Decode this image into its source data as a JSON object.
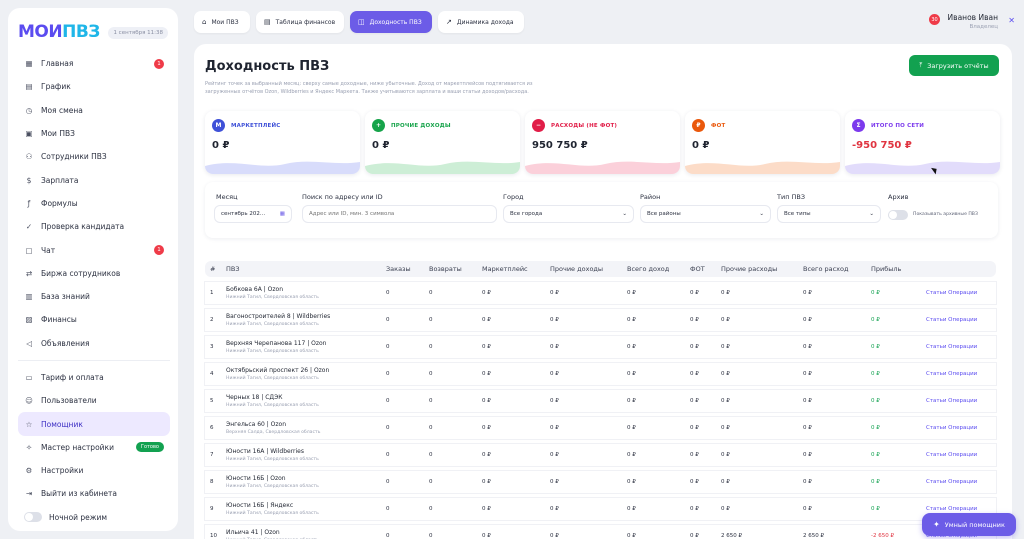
{
  "app": {
    "logo_part1": "МОИ",
    "logo_part2": "ПВЗ",
    "date": "1 сентября 11:38"
  },
  "sidebar": {
    "items": [
      {
        "label": "Главная",
        "icon": "grid-icon",
        "badge": "1"
      },
      {
        "label": "График",
        "icon": "chart-icon"
      },
      {
        "label": "Моя смена",
        "icon": "shift-icon"
      },
      {
        "label": "Мои ПВЗ",
        "icon": "store-icon"
      },
      {
        "label": "Сотрудники ПВЗ",
        "icon": "users-icon"
      },
      {
        "label": "Зарплата",
        "icon": "dollar-icon"
      },
      {
        "label": "Формулы",
        "icon": "formula-icon"
      },
      {
        "label": "Проверка кандидата",
        "icon": "check-icon"
      },
      {
        "label": "Чат",
        "icon": "chat-icon",
        "badge": "1"
      },
      {
        "label": "Биржа сотрудников",
        "icon": "exchange-icon"
      },
      {
        "label": "База знаний",
        "icon": "book-icon"
      },
      {
        "label": "Финансы",
        "icon": "finance-icon"
      },
      {
        "label": "Объявления",
        "icon": "megaphone-icon"
      }
    ],
    "items2": [
      {
        "label": "Тариф и оплата",
        "icon": "card-icon"
      },
      {
        "label": "Пользователи",
        "icon": "user-icon"
      },
      {
        "label": "Помощник",
        "icon": "star-icon",
        "active": true
      },
      {
        "label": "Мастер настройки",
        "icon": "wand-icon",
        "tag": "Готово"
      },
      {
        "label": "Настройки",
        "icon": "gear-icon"
      },
      {
        "label": "Выйти из кабинета",
        "icon": "logout-icon"
      }
    ],
    "night_mode": "Ночной режим"
  },
  "tabs": [
    {
      "label": "Мои ПВЗ",
      "icon": "home-icon"
    },
    {
      "label": "Таблица финансов",
      "icon": "table-icon"
    },
    {
      "label": "Доходность ПВЗ",
      "icon": "wallet-icon",
      "active": true
    },
    {
      "label": "Динамика дохода",
      "icon": "trend-icon"
    }
  ],
  "user": {
    "name": "Иванов Иван",
    "role": "Владелец",
    "badge": "30"
  },
  "page": {
    "title": "Доходность ПВЗ",
    "description": "Рейтинг точек за выбранный месяц: сверху самые доходные, ниже убыточные. Доход от маркетплейсов подтягивается из загруженных отчётов Ozon, Wildberries и Яндекс Маркета. Также учитываются зарплата и ваши статьи доходов/расхода.",
    "upload_label": "Загрузить отчёты"
  },
  "cards": [
    {
      "label": "МАРКЕТПЛЕЙС",
      "value": "0 ₽",
      "icon_text": "M",
      "color": "#3f51d8",
      "wave": "#d8dcfb"
    },
    {
      "label": "ПРОЧИЕ ДОХОДЫ",
      "value": "0 ₽",
      "icon_text": "+",
      "color": "#16a34a",
      "wave": "#cdeed6"
    },
    {
      "label": "РАСХОДЫ (НЕ ФОТ)",
      "value": "950 750 ₽",
      "icon_text": "−",
      "color": "#e11d48",
      "wave": "#fbd0da"
    },
    {
      "label": "ФОТ",
      "value": "0 ₽",
      "icon_text": "₽",
      "color": "#ea580c",
      "wave": "#fcdcc8"
    },
    {
      "label": "ИТОГО ПО СЕТИ",
      "value": "-950 750 ₽",
      "icon_text": "Σ",
      "color": "#7c3aed",
      "wave": "#e2dcfb",
      "value_color": "#e03440"
    }
  ],
  "filters": {
    "month_label": "Месяц",
    "month_value": "сентябрь 202...",
    "search_label": "Поиск по адресу или ID",
    "search_placeholder": "Адрес или ID, мин. 3 символа",
    "city_label": "Город",
    "city_value": "Все города",
    "district_label": "Район",
    "district_value": "Все районы",
    "type_label": "Тип ПВЗ",
    "type_value": "Все типы",
    "archive_label": "Архив",
    "archive_toggle": "Показывать архивные ПВЗ"
  },
  "table": {
    "headers": [
      "#",
      "ПВЗ",
      "Заказы",
      "Возвраты",
      "Маркетплейс",
      "Прочие доходы",
      "Всего доход",
      "ФОТ",
      "Прочие расходы",
      "Всего расход",
      "Прибыль",
      ""
    ],
    "rows": [
      {
        "n": "1",
        "name": "Бобкова 6А | Ozon",
        "addr": "Нижний Тагил, Свердловская область",
        "orders": "0",
        "returns": "0",
        "mp": "0 ₽",
        "other_inc": "0 ₽",
        "total_inc": "0 ₽",
        "fot": "0 ₽",
        "other_exp": "0 ₽",
        "total_exp": "0 ₽",
        "profit": "0 ₽",
        "ops": "Статьи Операции"
      },
      {
        "n": "2",
        "name": "Вагоностроителей 8 | Wildberries",
        "addr": "Нижний Тагил, Свердловская область",
        "orders": "0",
        "returns": "0",
        "mp": "0 ₽",
        "other_inc": "0 ₽",
        "total_inc": "0 ₽",
        "fot": "0 ₽",
        "other_exp": "0 ₽",
        "total_exp": "0 ₽",
        "profit": "0 ₽",
        "ops": "Статьи Операции"
      },
      {
        "n": "3",
        "name": "Верхняя Черепанова 117 | Ozon",
        "addr": "Нижний Тагил, Свердловская область",
        "orders": "0",
        "returns": "0",
        "mp": "0 ₽",
        "other_inc": "0 ₽",
        "total_inc": "0 ₽",
        "fot": "0 ₽",
        "other_exp": "0 ₽",
        "total_exp": "0 ₽",
        "profit": "0 ₽",
        "ops": "Статьи Операции"
      },
      {
        "n": "4",
        "name": "Октябрьский проспект 26 | Ozon",
        "addr": "Нижний Тагил, Свердловская область",
        "orders": "0",
        "returns": "0",
        "mp": "0 ₽",
        "other_inc": "0 ₽",
        "total_inc": "0 ₽",
        "fot": "0 ₽",
        "other_exp": "0 ₽",
        "total_exp": "0 ₽",
        "profit": "0 ₽",
        "ops": "Статьи Операции"
      },
      {
        "n": "5",
        "name": "Черных 18 | СДЭК",
        "addr": "Нижний Тагил, Свердловская область",
        "orders": "0",
        "returns": "0",
        "mp": "0 ₽",
        "other_inc": "0 ₽",
        "total_inc": "0 ₽",
        "fot": "0 ₽",
        "other_exp": "0 ₽",
        "total_exp": "0 ₽",
        "profit": "0 ₽",
        "ops": "Статьи Операции"
      },
      {
        "n": "6",
        "name": "Энгельса 60 | Ozon",
        "addr": "Верхняя Салда, Свердловская область",
        "orders": "0",
        "returns": "0",
        "mp": "0 ₽",
        "other_inc": "0 ₽",
        "total_inc": "0 ₽",
        "fot": "0 ₽",
        "other_exp": "0 ₽",
        "total_exp": "0 ₽",
        "profit": "0 ₽",
        "ops": "Статьи Операции"
      },
      {
        "n": "7",
        "name": "Юности 16А | Wildberries",
        "addr": "Нижний Тагил, Свердловская область",
        "orders": "0",
        "returns": "0",
        "mp": "0 ₽",
        "other_inc": "0 ₽",
        "total_inc": "0 ₽",
        "fot": "0 ₽",
        "other_exp": "0 ₽",
        "total_exp": "0 ₽",
        "profit": "0 ₽",
        "ops": "Статьи Операции"
      },
      {
        "n": "8",
        "name": "Юности 16Б | Ozon",
        "addr": "Нижний Тагил, Свердловская область",
        "orders": "0",
        "returns": "0",
        "mp": "0 ₽",
        "other_inc": "0 ₽",
        "total_inc": "0 ₽",
        "fot": "0 ₽",
        "other_exp": "0 ₽",
        "total_exp": "0 ₽",
        "profit": "0 ₽",
        "ops": "Статьи Операции"
      },
      {
        "n": "9",
        "name": "Юности 16Б | Яндекс",
        "addr": "Нижний Тагил, Свердловская область",
        "orders": "0",
        "returns": "0",
        "mp": "0 ₽",
        "other_inc": "0 ₽",
        "total_inc": "0 ₽",
        "fot": "0 ₽",
        "other_exp": "0 ₽",
        "total_exp": "0 ₽",
        "profit": "0 ₽",
        "ops": "Статьи Операции"
      },
      {
        "n": "10",
        "name": "Ильича 41 | Ozon",
        "addr": "Нижний Тагил, Свердловская область",
        "orders": "0",
        "returns": "0",
        "mp": "0 ₽",
        "other_inc": "0 ₽",
        "total_inc": "0 ₽",
        "fot": "0 ₽",
        "other_exp": "2 650 ₽",
        "total_exp": "2 650 ₽",
        "profit": "-2 650 ₽",
        "ops": "Статьи Операции",
        "neg": true
      }
    ]
  },
  "assistant": {
    "label": "Умный помощник"
  }
}
